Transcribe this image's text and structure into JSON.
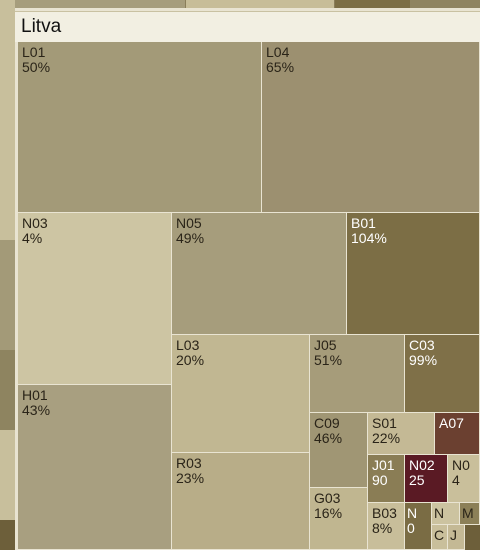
{
  "panel": {
    "title": "Litva",
    "tiles": [
      {
        "label": "L01",
        "value": "50%"
      },
      {
        "label": "L04",
        "value": "65%"
      },
      {
        "label": "N03",
        "value": "4%"
      },
      {
        "label": "N05",
        "value": "49%"
      },
      {
        "label": "B01",
        "value": "104%"
      },
      {
        "label": "L03",
        "value": "20%"
      },
      {
        "label": "J05",
        "value": "51%"
      },
      {
        "label": "C03",
        "value": "99%"
      },
      {
        "label": "H01",
        "value": "43%"
      },
      {
        "label": "C09",
        "value": "46%"
      },
      {
        "label": "S01",
        "value": "22%"
      },
      {
        "label": "A07"
      },
      {
        "label": "R03",
        "value": "23%"
      },
      {
        "label": "J01",
        "value": "90"
      },
      {
        "label": "N02",
        "value": "25"
      },
      {
        "label": "N0",
        "value": "4"
      },
      {
        "label": "G03",
        "value": "16%"
      },
      {
        "label": "B03",
        "value": "8%"
      },
      {
        "label": "N",
        "value": "0"
      },
      {
        "label": "N"
      },
      {
        "label": "M"
      },
      {
        "label": "C"
      },
      {
        "label": "J"
      }
    ]
  }
}
